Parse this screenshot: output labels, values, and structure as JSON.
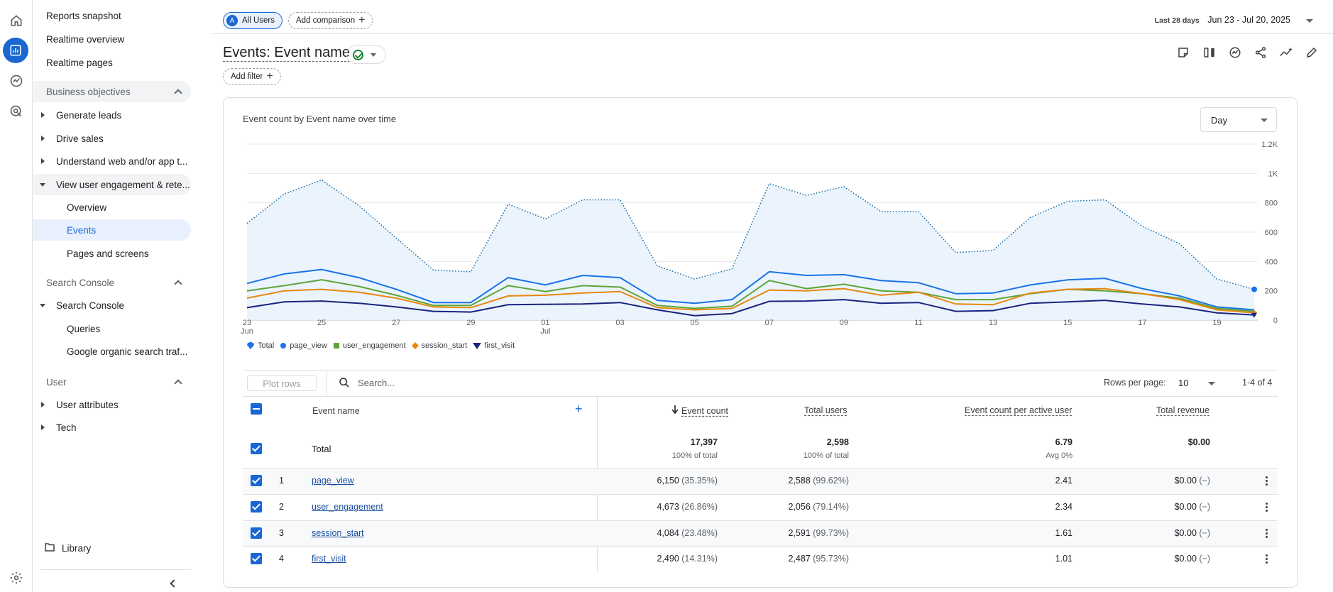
{
  "rail": {
    "icons": [
      "home-icon",
      "reports-icon",
      "explore-icon",
      "advertising-icon",
      "settings-icon"
    ]
  },
  "sidebar": {
    "top_items": [
      "Reports snapshot",
      "Realtime overview",
      "Realtime pages"
    ],
    "business_objectives": {
      "label": "Business objectives",
      "items": [
        "Generate leads",
        "Drive sales",
        "Understand web and/or app t...",
        "View user engagement & rete..."
      ],
      "sub_items": [
        "Overview",
        "Events",
        "Pages and screens"
      ]
    },
    "search_console": {
      "label": "Search Console",
      "item": "Search Console",
      "sub_items": [
        "Queries",
        "Google organic search traf..."
      ]
    },
    "user": {
      "label": "User",
      "items": [
        "User attributes",
        "Tech"
      ]
    },
    "library": "Library"
  },
  "header": {
    "segment": "All Users",
    "segment_avatar": "A",
    "add_comparison": "Add comparison",
    "date_range_label": "Last 28 days",
    "date_range": "Jun 23 - Jul 20, 2025"
  },
  "page": {
    "title": "Events: Event name",
    "add_filter": "Add filter"
  },
  "chart": {
    "title": "Event count by Event name over time",
    "granularity": "Day"
  },
  "chart_data": {
    "type": "line",
    "title": "Event count by Event name over time",
    "x": [
      "23 Jun",
      "24",
      "25",
      "26",
      "27",
      "28",
      "29",
      "30",
      "01 Jul",
      "02",
      "03",
      "04",
      "05",
      "06",
      "07",
      "08",
      "09",
      "10",
      "11",
      "12",
      "13",
      "14",
      "15",
      "16",
      "17",
      "18",
      "19",
      "20"
    ],
    "x_tick_labels": [
      "23",
      "Jun",
      "25",
      "27",
      "29",
      "01",
      "Jul",
      "03",
      "05",
      "07",
      "09",
      "11",
      "13",
      "15",
      "17",
      "19"
    ],
    "y_tick_labels": [
      "1.2K",
      "1K",
      "800",
      "600",
      "400",
      "200",
      "0"
    ],
    "ylim": [
      0,
      1200
    ],
    "series": [
      {
        "name": "Total",
        "color": "#1a73e8",
        "style": "dotted-area",
        "values": [
          660,
          860,
          955,
          780,
          560,
          340,
          330,
          790,
          690,
          820,
          820,
          370,
          280,
          350,
          930,
          850,
          910,
          740,
          740,
          460,
          475,
          700,
          810,
          820,
          640,
          520,
          280,
          210
        ]
      },
      {
        "name": "page_view",
        "color": "#1a73e8",
        "values": [
          250,
          315,
          345,
          290,
          210,
          120,
          120,
          290,
          240,
          305,
          290,
          135,
          115,
          140,
          330,
          305,
          310,
          270,
          255,
          180,
          185,
          240,
          275,
          285,
          215,
          165,
          90,
          70
        ]
      },
      {
        "name": "user_engagement",
        "color": "#5fa33a",
        "values": [
          200,
          235,
          275,
          230,
          170,
          100,
          100,
          235,
          195,
          235,
          225,
          100,
          80,
          95,
          270,
          215,
          245,
          200,
          190,
          140,
          140,
          180,
          210,
          200,
          180,
          150,
          80,
          60
        ]
      },
      {
        "name": "session_start",
        "color": "#e8870e",
        "values": [
          150,
          200,
          210,
          190,
          150,
          90,
          85,
          165,
          170,
          185,
          195,
          85,
          70,
          80,
          205,
          200,
          215,
          170,
          190,
          110,
          105,
          185,
          210,
          215,
          180,
          140,
          70,
          50
        ]
      },
      {
        "name": "first_visit",
        "color": "#1a237e",
        "values": [
          85,
          125,
          130,
          115,
          90,
          60,
          55,
          105,
          108,
          110,
          120,
          70,
          30,
          45,
          128,
          130,
          140,
          115,
          120,
          60,
          65,
          115,
          125,
          135,
          110,
          90,
          50,
          35
        ]
      }
    ]
  },
  "table": {
    "plot_rows": "Plot rows",
    "search_placeholder": "Search...",
    "rows_per_page_label": "Rows per page:",
    "rows_per_page": "10",
    "pagination": "1-4 of 4",
    "headers": {
      "event_name": "Event name",
      "event_count": "Event count",
      "total_users": "Total users",
      "per_user": "Event count per active user",
      "revenue": "Total revenue"
    },
    "total": {
      "label": "Total",
      "event_count": "17,397",
      "event_count_sub": "100% of total",
      "total_users": "2,598",
      "total_users_sub": "100% of total",
      "per_user": "6.79",
      "per_user_sub": "Avg 0%",
      "revenue": "$0.00"
    },
    "rows": [
      {
        "rank": "1",
        "name": "page_view",
        "event_count": "6,150",
        "event_pct": "(35.35%)",
        "users": "2,588",
        "users_pct": "(99.62%)",
        "per_user": "2.41",
        "revenue": "$0.00",
        "rev_pct": "(−)"
      },
      {
        "rank": "2",
        "name": "user_engagement",
        "event_count": "4,673",
        "event_pct": "(26.86%)",
        "users": "2,056",
        "users_pct": "(79.14%)",
        "per_user": "2.34",
        "revenue": "$0.00",
        "rev_pct": "(−)"
      },
      {
        "rank": "3",
        "name": "session_start",
        "event_count": "4,084",
        "event_pct": "(23.48%)",
        "users": "2,591",
        "users_pct": "(99.73%)",
        "per_user": "1.61",
        "revenue": "$0.00",
        "rev_pct": "(−)"
      },
      {
        "rank": "4",
        "name": "first_visit",
        "event_count": "2,490",
        "event_pct": "(14.31%)",
        "users": "2,487",
        "users_pct": "(95.73%)",
        "per_user": "1.01",
        "revenue": "$0.00",
        "rev_pct": "(−)"
      }
    ]
  }
}
